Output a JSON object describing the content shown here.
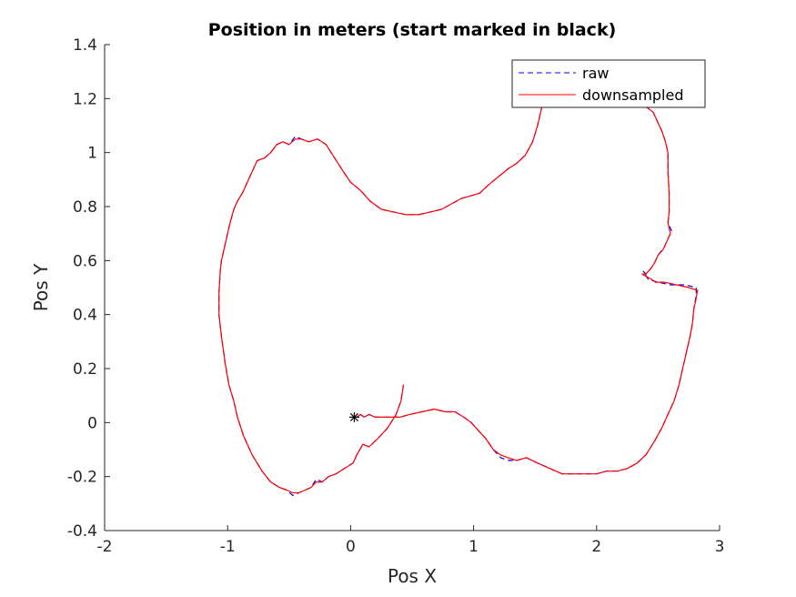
{
  "chart_data": {
    "type": "line",
    "title": "Position in meters (start marked in black)",
    "xlabel": "Pos X",
    "ylabel": "Pos Y",
    "xlim": [
      -2,
      3
    ],
    "ylim": [
      -0.4,
      1.4
    ],
    "xticks": [
      "-2",
      "-1",
      "0",
      "1",
      "2",
      "3"
    ],
    "yticks": [
      "-0.4",
      "-0.2",
      "0",
      "0.2",
      "0.4",
      "0.6",
      "0.8",
      "1",
      "1.2",
      "1.4"
    ],
    "grid": false,
    "legend_position": "top-right",
    "start_point": {
      "x": 0.03,
      "y": 0.02,
      "color": "#000000"
    },
    "series": [
      {
        "name": "raw",
        "color": "#0000ff",
        "style": "dashed",
        "points": [
          [
            0.43,
            0.14
          ],
          [
            0.41,
            0.08
          ],
          [
            0.37,
            0.03
          ],
          [
            0.3,
            -0.02
          ],
          [
            0.22,
            -0.06
          ],
          [
            0.15,
            -0.09
          ],
          [
            0.1,
            -0.08
          ],
          [
            0.05,
            -0.12
          ],
          [
            0.02,
            -0.15
          ],
          [
            -0.05,
            -0.17
          ],
          [
            -0.12,
            -0.19
          ],
          [
            -0.18,
            -0.2
          ],
          [
            -0.23,
            -0.22
          ],
          [
            -0.28,
            -0.21
          ],
          [
            -0.32,
            -0.24
          ],
          [
            -0.37,
            -0.25
          ],
          [
            -0.42,
            -0.26
          ],
          [
            -0.47,
            -0.27
          ],
          [
            -0.52,
            -0.25
          ],
          [
            -0.58,
            -0.24
          ],
          [
            -0.65,
            -0.22
          ],
          [
            -0.72,
            -0.18
          ],
          [
            -0.8,
            -0.12
          ],
          [
            -0.87,
            -0.05
          ],
          [
            -0.92,
            0.02
          ],
          [
            -0.95,
            0.08
          ],
          [
            -0.99,
            0.14
          ],
          [
            -1.02,
            0.22
          ],
          [
            -1.05,
            0.32
          ],
          [
            -1.07,
            0.4
          ],
          [
            -1.07,
            0.48
          ],
          [
            -1.06,
            0.56
          ],
          [
            -1.05,
            0.6
          ],
          [
            -1.03,
            0.64
          ],
          [
            -1.01,
            0.68
          ],
          [
            -0.98,
            0.74
          ],
          [
            -0.95,
            0.79
          ],
          [
            -0.92,
            0.82
          ],
          [
            -0.88,
            0.85
          ],
          [
            -0.85,
            0.88
          ],
          [
            -0.81,
            0.92
          ],
          [
            -0.76,
            0.97
          ],
          [
            -0.7,
            0.98
          ],
          [
            -0.65,
            1.0
          ],
          [
            -0.6,
            1.03
          ],
          [
            -0.55,
            1.04
          ],
          [
            -0.5,
            1.03
          ],
          [
            -0.45,
            1.06
          ],
          [
            -0.4,
            1.05
          ],
          [
            -0.34,
            1.04
          ],
          [
            -0.27,
            1.05
          ],
          [
            -0.2,
            1.03
          ],
          [
            -0.13,
            0.98
          ],
          [
            -0.06,
            0.93
          ],
          [
            0.0,
            0.89
          ],
          [
            0.08,
            0.86
          ],
          [
            0.16,
            0.82
          ],
          [
            0.25,
            0.79
          ],
          [
            0.35,
            0.78
          ],
          [
            0.45,
            0.77
          ],
          [
            0.55,
            0.77
          ],
          [
            0.65,
            0.78
          ],
          [
            0.74,
            0.79
          ],
          [
            0.82,
            0.81
          ],
          [
            0.9,
            0.83
          ],
          [
            0.98,
            0.84
          ],
          [
            1.05,
            0.85
          ],
          [
            1.12,
            0.88
          ],
          [
            1.2,
            0.91
          ],
          [
            1.28,
            0.94
          ],
          [
            1.35,
            0.96
          ],
          [
            1.42,
            0.99
          ],
          [
            1.48,
            1.04
          ],
          [
            1.52,
            1.1
          ],
          [
            1.55,
            1.16
          ],
          [
            1.59,
            1.22
          ],
          [
            1.64,
            1.27
          ],
          [
            1.72,
            1.3
          ],
          [
            1.82,
            1.32
          ],
          [
            1.92,
            1.33
          ],
          [
            2.02,
            1.32
          ],
          [
            2.12,
            1.3
          ],
          [
            2.22,
            1.26
          ],
          [
            2.32,
            1.21
          ],
          [
            2.4,
            1.17
          ],
          [
            2.46,
            1.15
          ],
          [
            2.49,
            1.12
          ],
          [
            2.53,
            1.08
          ],
          [
            2.56,
            1.04
          ],
          [
            2.58,
            1.0
          ],
          [
            2.58,
            0.93
          ],
          [
            2.59,
            0.85
          ],
          [
            2.59,
            0.78
          ],
          [
            2.58,
            0.74
          ],
          [
            2.61,
            0.71
          ],
          [
            2.58,
            0.68
          ],
          [
            2.55,
            0.65
          ],
          [
            2.5,
            0.62
          ],
          [
            2.47,
            0.59
          ],
          [
            2.44,
            0.57
          ],
          [
            2.4,
            0.55
          ],
          [
            2.38,
            0.56
          ],
          [
            2.42,
            0.53
          ],
          [
            2.5,
            0.52
          ],
          [
            2.6,
            0.51
          ],
          [
            2.72,
            0.51
          ],
          [
            2.81,
            0.5
          ],
          [
            2.81,
            0.47
          ],
          [
            2.79,
            0.42
          ],
          [
            2.78,
            0.37
          ],
          [
            2.76,
            0.32
          ],
          [
            2.73,
            0.26
          ],
          [
            2.7,
            0.2
          ],
          [
            2.67,
            0.14
          ],
          [
            2.63,
            0.08
          ],
          [
            2.58,
            0.03
          ],
          [
            2.53,
            -0.02
          ],
          [
            2.47,
            -0.07
          ],
          [
            2.4,
            -0.12
          ],
          [
            2.33,
            -0.15
          ],
          [
            2.25,
            -0.17
          ],
          [
            2.17,
            -0.18
          ],
          [
            2.08,
            -0.18
          ],
          [
            2.0,
            -0.19
          ],
          [
            1.92,
            -0.19
          ],
          [
            1.82,
            -0.19
          ],
          [
            1.72,
            -0.19
          ],
          [
            1.62,
            -0.17
          ],
          [
            1.52,
            -0.15
          ],
          [
            1.43,
            -0.13
          ],
          [
            1.35,
            -0.14
          ],
          [
            1.28,
            -0.14
          ],
          [
            1.22,
            -0.13
          ],
          [
            1.16,
            -0.1
          ],
          [
            1.1,
            -0.06
          ],
          [
            1.04,
            -0.03
          ],
          [
            0.98,
            0.0
          ],
          [
            0.92,
            0.02
          ],
          [
            0.85,
            0.04
          ],
          [
            0.77,
            0.04
          ],
          [
            0.68,
            0.05
          ],
          [
            0.58,
            0.04
          ],
          [
            0.48,
            0.03
          ],
          [
            0.4,
            0.02
          ],
          [
            0.32,
            0.02
          ],
          [
            0.25,
            0.02
          ],
          [
            0.2,
            0.02
          ],
          [
            0.15,
            0.03
          ],
          [
            0.11,
            0.02
          ],
          [
            0.08,
            0.03
          ],
          [
            0.05,
            0.02
          ]
        ]
      },
      {
        "name": "downsampled",
        "color": "#ff0000",
        "style": "solid",
        "points": [
          [
            0.43,
            0.14
          ],
          [
            0.41,
            0.08
          ],
          [
            0.37,
            0.03
          ],
          [
            0.3,
            -0.02
          ],
          [
            0.22,
            -0.06
          ],
          [
            0.15,
            -0.09
          ],
          [
            0.1,
            -0.08
          ],
          [
            0.05,
            -0.12
          ],
          [
            0.02,
            -0.15
          ],
          [
            -0.05,
            -0.17
          ],
          [
            -0.12,
            -0.19
          ],
          [
            -0.18,
            -0.2
          ],
          [
            -0.23,
            -0.22
          ],
          [
            -0.28,
            -0.22
          ],
          [
            -0.32,
            -0.24
          ],
          [
            -0.37,
            -0.25
          ],
          [
            -0.42,
            -0.26
          ],
          [
            -0.47,
            -0.26
          ],
          [
            -0.52,
            -0.25
          ],
          [
            -0.58,
            -0.24
          ],
          [
            -0.65,
            -0.22
          ],
          [
            -0.72,
            -0.18
          ],
          [
            -0.8,
            -0.12
          ],
          [
            -0.87,
            -0.05
          ],
          [
            -0.92,
            0.02
          ],
          [
            -0.95,
            0.08
          ],
          [
            -0.99,
            0.14
          ],
          [
            -1.02,
            0.22
          ],
          [
            -1.05,
            0.32
          ],
          [
            -1.07,
            0.4
          ],
          [
            -1.07,
            0.48
          ],
          [
            -1.06,
            0.56
          ],
          [
            -1.05,
            0.6
          ],
          [
            -1.03,
            0.64
          ],
          [
            -1.01,
            0.68
          ],
          [
            -0.98,
            0.74
          ],
          [
            -0.95,
            0.79
          ],
          [
            -0.92,
            0.82
          ],
          [
            -0.88,
            0.85
          ],
          [
            -0.85,
            0.88
          ],
          [
            -0.81,
            0.92
          ],
          [
            -0.76,
            0.97
          ],
          [
            -0.7,
            0.98
          ],
          [
            -0.65,
            1.0
          ],
          [
            -0.6,
            1.03
          ],
          [
            -0.55,
            1.04
          ],
          [
            -0.5,
            1.03
          ],
          [
            -0.45,
            1.05
          ],
          [
            -0.4,
            1.05
          ],
          [
            -0.34,
            1.04
          ],
          [
            -0.27,
            1.05
          ],
          [
            -0.2,
            1.03
          ],
          [
            -0.13,
            0.98
          ],
          [
            -0.06,
            0.93
          ],
          [
            0.0,
            0.89
          ],
          [
            0.08,
            0.86
          ],
          [
            0.16,
            0.82
          ],
          [
            0.25,
            0.79
          ],
          [
            0.35,
            0.78
          ],
          [
            0.45,
            0.77
          ],
          [
            0.55,
            0.77
          ],
          [
            0.65,
            0.78
          ],
          [
            0.74,
            0.79
          ],
          [
            0.82,
            0.81
          ],
          [
            0.9,
            0.83
          ],
          [
            0.98,
            0.84
          ],
          [
            1.05,
            0.85
          ],
          [
            1.12,
            0.88
          ],
          [
            1.2,
            0.91
          ],
          [
            1.28,
            0.94
          ],
          [
            1.35,
            0.96
          ],
          [
            1.42,
            0.99
          ],
          [
            1.48,
            1.04
          ],
          [
            1.52,
            1.1
          ],
          [
            1.55,
            1.16
          ],
          [
            1.59,
            1.22
          ],
          [
            1.64,
            1.27
          ],
          [
            1.72,
            1.3
          ],
          [
            1.82,
            1.32
          ],
          [
            1.92,
            1.33
          ],
          [
            2.02,
            1.32
          ],
          [
            2.12,
            1.3
          ],
          [
            2.22,
            1.26
          ],
          [
            2.32,
            1.21
          ],
          [
            2.4,
            1.17
          ],
          [
            2.46,
            1.15
          ],
          [
            2.49,
            1.12
          ],
          [
            2.53,
            1.08
          ],
          [
            2.56,
            1.04
          ],
          [
            2.58,
            1.0
          ],
          [
            2.58,
            0.93
          ],
          [
            2.59,
            0.85
          ],
          [
            2.59,
            0.78
          ],
          [
            2.58,
            0.74
          ],
          [
            2.6,
            0.7
          ],
          [
            2.57,
            0.67
          ],
          [
            2.54,
            0.64
          ],
          [
            2.5,
            0.62
          ],
          [
            2.47,
            0.59
          ],
          [
            2.44,
            0.57
          ],
          [
            2.4,
            0.55
          ],
          [
            2.37,
            0.55
          ],
          [
            2.45,
            0.53
          ],
          [
            2.48,
            0.52
          ],
          [
            2.55,
            0.52
          ],
          [
            2.65,
            0.51
          ],
          [
            2.75,
            0.5
          ],
          [
            2.82,
            0.49
          ],
          [
            2.81,
            0.46
          ],
          [
            2.79,
            0.42
          ],
          [
            2.78,
            0.37
          ],
          [
            2.76,
            0.32
          ],
          [
            2.73,
            0.26
          ],
          [
            2.7,
            0.2
          ],
          [
            2.67,
            0.14
          ],
          [
            2.63,
            0.08
          ],
          [
            2.58,
            0.03
          ],
          [
            2.53,
            -0.02
          ],
          [
            2.47,
            -0.07
          ],
          [
            2.4,
            -0.12
          ],
          [
            2.33,
            -0.15
          ],
          [
            2.25,
            -0.17
          ],
          [
            2.17,
            -0.18
          ],
          [
            2.08,
            -0.18
          ],
          [
            2.0,
            -0.19
          ],
          [
            1.92,
            -0.19
          ],
          [
            1.82,
            -0.19
          ],
          [
            1.72,
            -0.19
          ],
          [
            1.62,
            -0.17
          ],
          [
            1.52,
            -0.15
          ],
          [
            1.43,
            -0.13
          ],
          [
            1.35,
            -0.14
          ],
          [
            1.28,
            -0.13
          ],
          [
            1.22,
            -0.12
          ],
          [
            1.16,
            -0.1
          ],
          [
            1.1,
            -0.06
          ],
          [
            1.04,
            -0.03
          ],
          [
            0.98,
            0.0
          ],
          [
            0.92,
            0.02
          ],
          [
            0.85,
            0.04
          ],
          [
            0.77,
            0.04
          ],
          [
            0.68,
            0.05
          ],
          [
            0.58,
            0.04
          ],
          [
            0.48,
            0.03
          ],
          [
            0.4,
            0.02
          ],
          [
            0.32,
            0.02
          ],
          [
            0.25,
            0.02
          ],
          [
            0.2,
            0.02
          ],
          [
            0.15,
            0.03
          ],
          [
            0.11,
            0.02
          ],
          [
            0.08,
            0.03
          ],
          [
            0.05,
            0.02
          ]
        ]
      }
    ]
  }
}
